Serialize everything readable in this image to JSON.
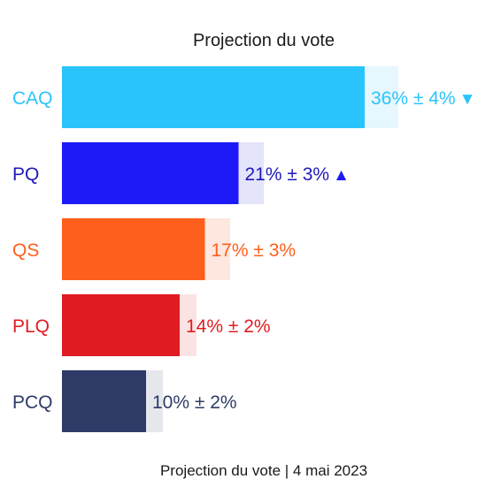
{
  "chart_data": {
    "type": "bar",
    "orientation": "horizontal",
    "title": "Projection du vote",
    "footer": "Projection du vote | 4 mai 2023",
    "xlim": [
      0,
      45
    ],
    "categories": [
      "CAQ",
      "PQ",
      "QS",
      "PLQ",
      "PCQ"
    ],
    "values": [
      36,
      21,
      17,
      14,
      10
    ],
    "margins": [
      4,
      3,
      3,
      2,
      2
    ],
    "labels": [
      "36% ± 4%",
      "21% ± 3%",
      "17% ± 3%",
      "14% ± 2%",
      "10% ± 2%"
    ],
    "trend": [
      "down",
      "up",
      "",
      "",
      ""
    ],
    "trend_glyphs": [
      "▼",
      "▲",
      "",
      "",
      ""
    ],
    "colors": [
      "#29c4fc",
      "#1e1af7",
      "#ff5f1c",
      "#e01c22",
      "#2e3b66"
    ],
    "band_colors": [
      "#e6f7fe",
      "#e4e4fb",
      "#fde7df",
      "#fbe3e4",
      "#e5e7ec"
    ],
    "label_colors": [
      "#29c4fc",
      "#1e1ab8",
      "#ff5f1c",
      "#e01c22",
      "#2e3b66"
    ],
    "legend": "none",
    "grid": false
  }
}
